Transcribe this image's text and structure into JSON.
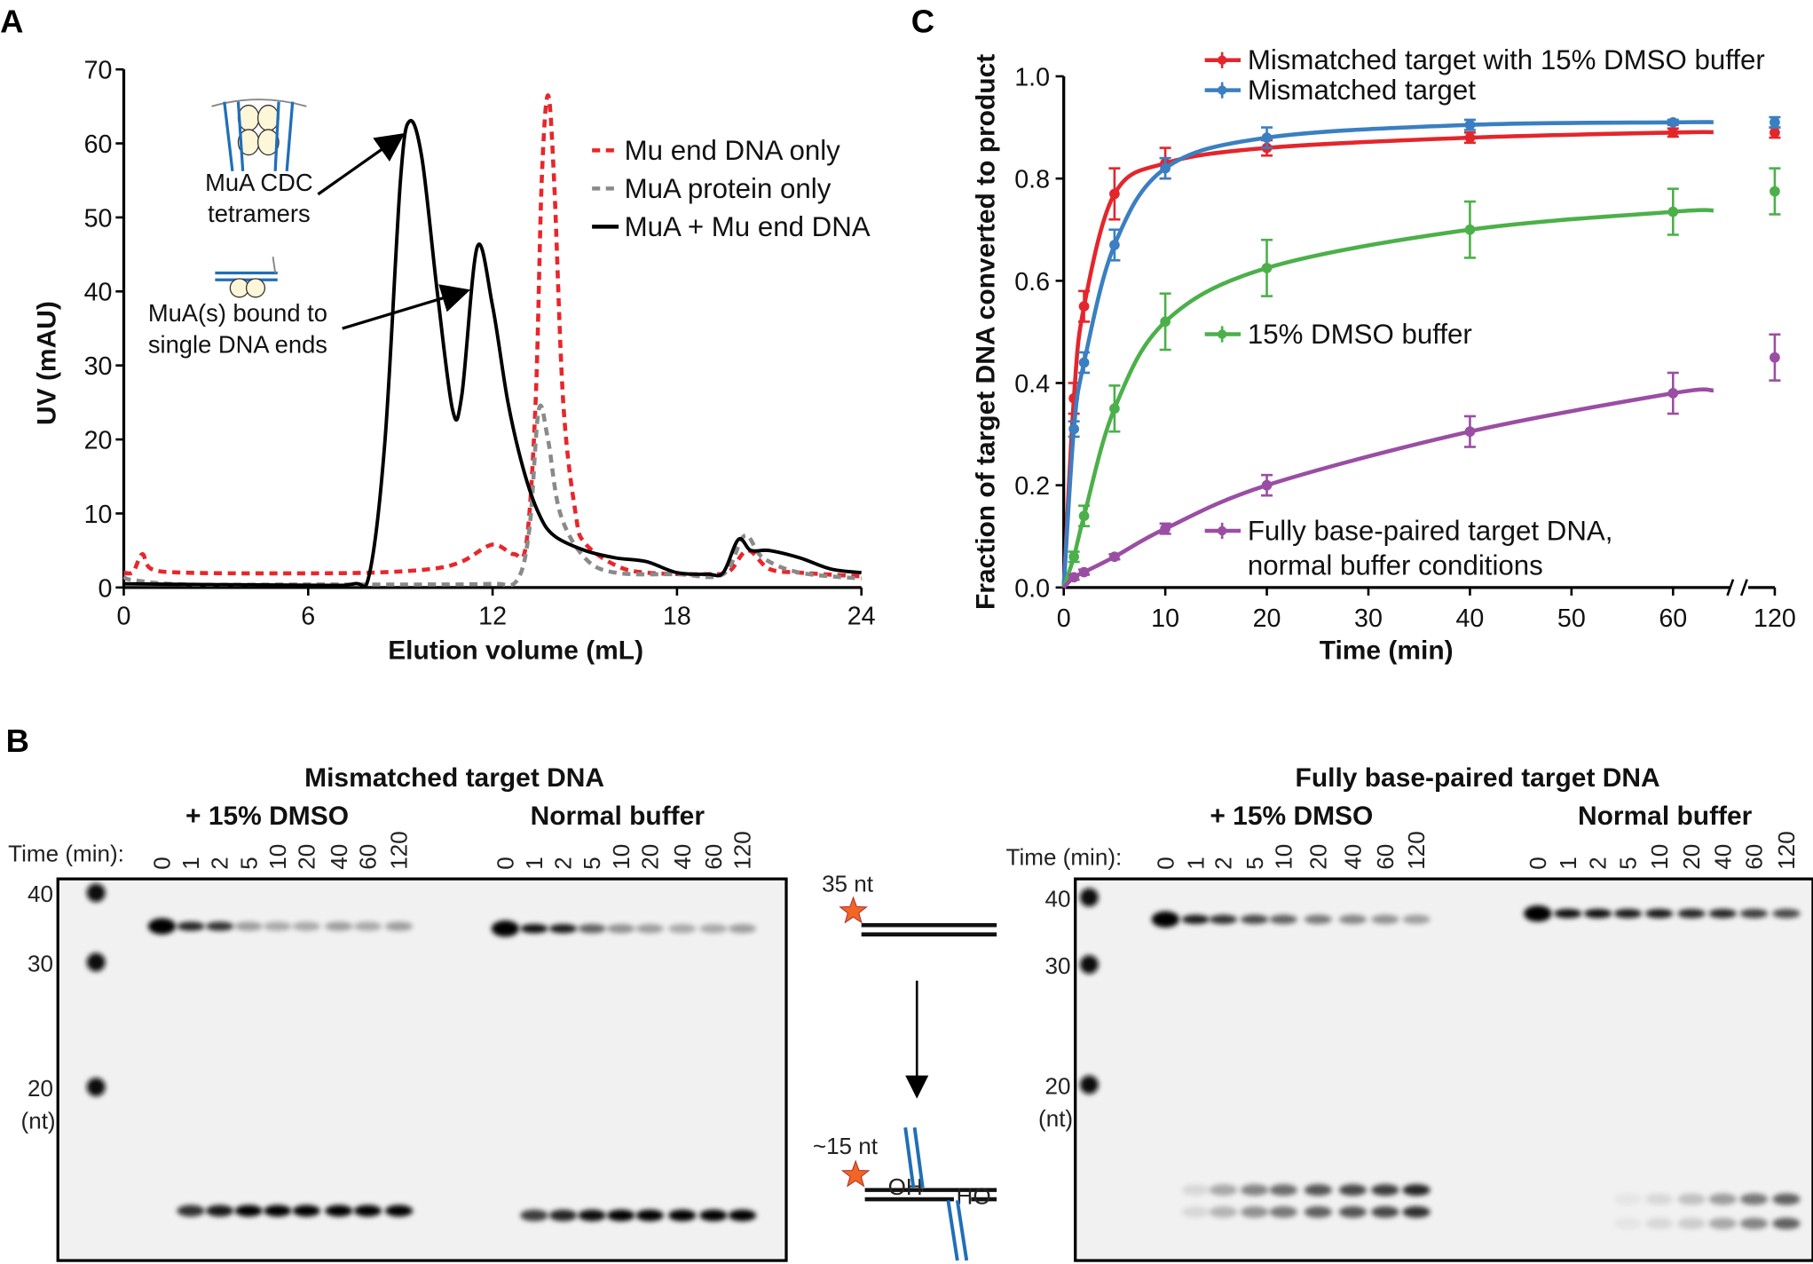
{
  "panel_labels": {
    "a": "A",
    "b": "B",
    "c": "C"
  },
  "chart_data": [
    {
      "panel": "A",
      "type": "line",
      "xlabel": "Elution volume (mL)",
      "ylabel": "UV (mAU)",
      "xlim": [
        0,
        24
      ],
      "ylim": [
        0,
        70
      ],
      "xticks": [
        0,
        6,
        12,
        18,
        24
      ],
      "yticks": [
        0,
        10,
        20,
        30,
        40,
        50,
        60,
        70
      ],
      "grid": false,
      "legend_placement": "top-right",
      "annotations": [
        {
          "lines": [
            "MuA CDC",
            "tetramers"
          ],
          "points_to_x": 9.3
        },
        {
          "lines": [
            "MuA(s) bound to",
            "single DNA ends"
          ],
          "points_to_x": 11.5
        }
      ],
      "series": [
        {
          "name": "Mu end DNA only",
          "color": "#e8262b",
          "style": "dashed",
          "points": [
            [
              0,
              2
            ],
            [
              0.3,
              2.1
            ],
            [
              0.6,
              4.5
            ],
            [
              0.9,
              2.5
            ],
            [
              2,
              2
            ],
            [
              5,
              1.9
            ],
            [
              8,
              2
            ],
            [
              10,
              2.5
            ],
            [
              11,
              3.5
            ],
            [
              12,
              5.8
            ],
            [
              12.7,
              4.5
            ],
            [
              13.1,
              6
            ],
            [
              13.4,
              25
            ],
            [
              13.6,
              55
            ],
            [
              13.8,
              66.5
            ],
            [
              14,
              55
            ],
            [
              14.3,
              25
            ],
            [
              14.7,
              10
            ],
            [
              15,
              6
            ],
            [
              16,
              3
            ],
            [
              17,
              2
            ],
            [
              19,
              1.8
            ],
            [
              19.7,
              2.2
            ],
            [
              20.3,
              5
            ],
            [
              21,
              2.5
            ],
            [
              22,
              2
            ],
            [
              24,
              1.5
            ]
          ]
        },
        {
          "name": "MuA protein only",
          "color": "#8a8a8a",
          "style": "dashed",
          "points": [
            [
              0,
              1.5
            ],
            [
              0.3,
              1
            ],
            [
              2,
              0.4
            ],
            [
              6,
              0.4
            ],
            [
              10,
              0.4
            ],
            [
              12,
              0.5
            ],
            [
              12.8,
              1
            ],
            [
              13.2,
              8
            ],
            [
              13.5,
              24
            ],
            [
              13.8,
              20
            ],
            [
              14.2,
              10
            ],
            [
              15,
              4
            ],
            [
              16,
              2
            ],
            [
              18,
              1.8
            ],
            [
              19.5,
              1.8
            ],
            [
              20.2,
              7
            ],
            [
              20.8,
              4
            ],
            [
              22,
              2
            ],
            [
              24,
              1.2
            ]
          ]
        },
        {
          "name": "MuA + Mu end DNA",
          "color": "#000000",
          "style": "solid",
          "points": [
            [
              0,
              0.5
            ],
            [
              6,
              0.3
            ],
            [
              7.5,
              0.5
            ],
            [
              8,
              2
            ],
            [
              8.5,
              20
            ],
            [
              9,
              55
            ],
            [
              9.3,
              63
            ],
            [
              9.7,
              58
            ],
            [
              10.2,
              40
            ],
            [
              10.7,
              24
            ],
            [
              11,
              26
            ],
            [
              11.5,
              46
            ],
            [
              12,
              38
            ],
            [
              12.5,
              25
            ],
            [
              13,
              16
            ],
            [
              13.5,
              10
            ],
            [
              14,
              7
            ],
            [
              15,
              5
            ],
            [
              16,
              4
            ],
            [
              17,
              3.5
            ],
            [
              18,
              2
            ],
            [
              19,
              1.8
            ],
            [
              19.5,
              2
            ],
            [
              20,
              6.5
            ],
            [
              20.4,
              5
            ],
            [
              21,
              5
            ],
            [
              22,
              4
            ],
            [
              23,
              2.5
            ],
            [
              24,
              2
            ]
          ]
        }
      ]
    },
    {
      "panel": "C",
      "type": "line",
      "xlabel": "Time (min)",
      "ylabel": "Fraction of target DNA converted to product",
      "xlim": [
        0,
        120
      ],
      "x_axis_break": [
        60,
        120
      ],
      "ylim": [
        0,
        1.0
      ],
      "xticks": [
        0,
        10,
        20,
        30,
        40,
        50,
        60,
        120
      ],
      "yticks": [
        "0.0",
        "0.2",
        "0.4",
        "0.6",
        "0.8",
        "1.0"
      ],
      "grid": false,
      "x": [
        1,
        2,
        5,
        10,
        20,
        40,
        60,
        120
      ],
      "series": [
        {
          "name": "Mismatched target with 15% DMSO buffer",
          "color": "#e3262c",
          "values": [
            0.37,
            0.55,
            0.77,
            0.83,
            0.86,
            0.88,
            0.89,
            0.89
          ],
          "errors": [
            0.03,
            0.03,
            0.05,
            0.03,
            0.015,
            0.01,
            0.008,
            0.01
          ]
        },
        {
          "name": "Mismatched target",
          "color": "#3a7fc1",
          "values": [
            0.31,
            0.44,
            0.67,
            0.82,
            0.88,
            0.905,
            0.91,
            0.91
          ],
          "errors": [
            0.015,
            0.02,
            0.03,
            0.02,
            0.02,
            0.01,
            0.005,
            0.01
          ]
        },
        {
          "name": "15% DMSO buffer",
          "color": "#4cb04a",
          "values": [
            0.06,
            0.14,
            0.35,
            0.52,
            0.625,
            0.7,
            0.735,
            0.775
          ],
          "errors": [
            0.01,
            0.02,
            0.045,
            0.055,
            0.055,
            0.055,
            0.045,
            0.045
          ]
        },
        {
          "name": "Fully base-paired target DNA,\nnormal buffer conditions",
          "color": "#9a4ea3",
          "values": [
            0.02,
            0.03,
            0.06,
            0.115,
            0.2,
            0.305,
            0.38,
            0.45
          ],
          "errors": [
            0.005,
            0.005,
            0.005,
            0.01,
            0.02,
            0.03,
            0.04,
            0.045
          ]
        }
      ]
    }
  ],
  "gels": {
    "time_label": "Time (min):",
    "lanes": [
      "0",
      "1",
      "2",
      "5",
      "10",
      "20",
      "40",
      "60",
      "120"
    ],
    "markers": [
      "40",
      "30",
      "20"
    ],
    "marker_unit": "(nt)",
    "left": {
      "title": "Mismatched target DNA",
      "groups": [
        "+ 15% DMSO",
        "Normal buffer"
      ]
    },
    "right": {
      "title": "Fully base-paired target DNA",
      "groups": [
        "+ 15% DMSO",
        "Normal buffer"
      ]
    },
    "diagram": {
      "substrate_label": "35 nt",
      "product_label": "~15 nt",
      "oh_label": "OH",
      "ho_label": "HO",
      "star_color": "#f26522",
      "strand_color": "#1f6fb8"
    }
  }
}
